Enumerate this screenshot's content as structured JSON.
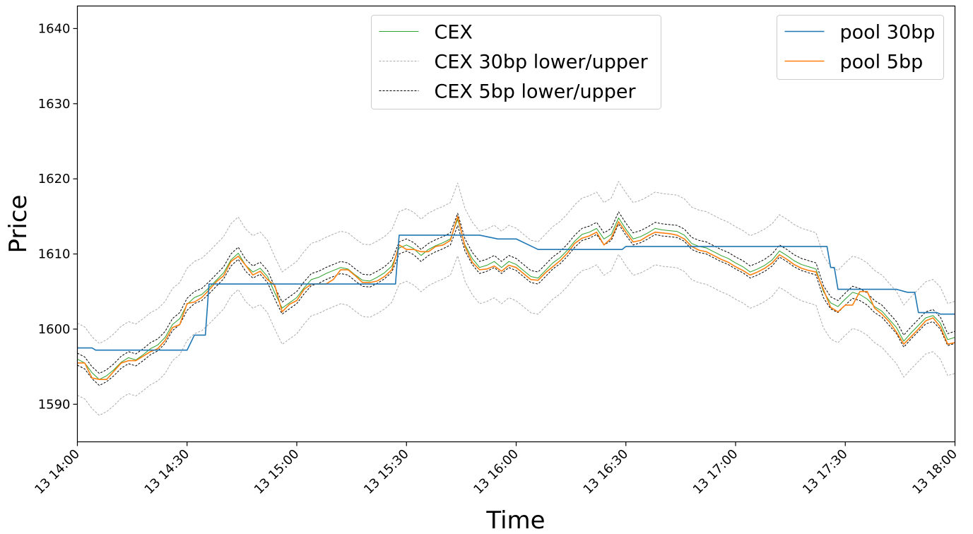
{
  "chart_data": {
    "type": "line",
    "xlabel": "Time",
    "ylabel": "Price",
    "x_ticks": [
      "13 14:00",
      "13 14:30",
      "13 15:00",
      "13 15:30",
      "13 16:00",
      "13 16:30",
      "13 17:00",
      "13 17:30",
      "13 18:00"
    ],
    "y_ticks": [
      "1590",
      "1600",
      "1610",
      "1620",
      "1630",
      "1640"
    ],
    "xlim_minutes": [
      0,
      240
    ],
    "ylim": [
      1585,
      1643
    ],
    "grid": false,
    "legends": [
      {
        "placement": "top-center",
        "entries": [
          {
            "label": "CEX",
            "series": "cex"
          },
          {
            "label": "CEX 30bp lower/upper",
            "series": "cex_30bp"
          },
          {
            "label": "CEX 5bp lower/upper",
            "series": "cex_5bp"
          }
        ]
      },
      {
        "placement": "top-right",
        "entries": [
          {
            "label": "pool 30bp",
            "series": "pool_30bp"
          },
          {
            "label": "pool 5bp",
            "series": "pool_5bp"
          }
        ]
      }
    ],
    "colors": {
      "cex": "#2ca02c",
      "cex_30bp": "#aaaaaa",
      "cex_5bp": "#000000",
      "pool_30bp": "#1f77b4",
      "pool_5bp": "#ff7f0e"
    },
    "series": [
      {
        "name": "CEX",
        "key": "cex",
        "x_minutes": [
          0,
          2,
          4,
          6,
          8,
          10,
          12,
          14,
          16,
          18,
          20,
          22,
          24,
          26,
          28,
          30,
          32,
          34,
          36,
          38,
          40,
          42,
          44,
          46,
          48,
          50,
          52,
          54,
          56,
          58,
          60,
          62,
          64,
          66,
          68,
          70,
          72,
          74,
          76,
          78,
          80,
          82,
          84,
          86,
          88,
          90,
          92,
          94,
          96,
          98,
          100,
          102,
          104,
          106,
          108,
          110,
          112,
          114,
          116,
          118,
          120,
          122,
          124,
          126,
          128,
          130,
          132,
          134,
          136,
          138,
          140,
          142,
          144,
          146,
          148,
          150,
          152,
          154,
          156,
          158,
          160,
          162,
          164,
          166,
          168,
          170,
          172,
          174,
          176,
          178,
          180,
          182,
          184,
          186,
          188,
          190,
          192,
          194,
          196,
          198,
          200,
          202,
          204,
          206,
          208,
          210,
          212,
          214,
          216,
          218,
          220,
          222,
          224,
          226,
          228,
          230,
          232,
          234,
          236,
          238,
          240
        ],
        "values": [
          1596.0,
          1595.5,
          1594.2,
          1593.3,
          1593.8,
          1594.6,
          1595.6,
          1596.2,
          1595.9,
          1596.6,
          1597.4,
          1597.9,
          1598.9,
          1600.6,
          1601.4,
          1603.3,
          1604.2,
          1604.6,
          1605.5,
          1606.5,
          1607.5,
          1609.2,
          1610.1,
          1608.5,
          1607.6,
          1608.1,
          1607.0,
          1604.8,
          1602.8,
          1603.5,
          1604.2,
          1605.5,
          1606.6,
          1606.9,
          1607.4,
          1607.8,
          1608.2,
          1608.0,
          1607.2,
          1606.5,
          1606.4,
          1606.9,
          1607.5,
          1608.4,
          1610.8,
          1611.2,
          1610.7,
          1609.8,
          1610.6,
          1611.1,
          1611.5,
          1612.0,
          1614.6,
          1611.2,
          1609.4,
          1608.2,
          1608.5,
          1609.0,
          1608.2,
          1609.0,
          1608.6,
          1607.8,
          1607.0,
          1606.8,
          1607.8,
          1608.8,
          1609.5,
          1610.5,
          1611.7,
          1612.6,
          1612.9,
          1613.4,
          1612.0,
          1612.6,
          1614.8,
          1613.3,
          1612.0,
          1612.3,
          1612.8,
          1613.4,
          1613.2,
          1613.1,
          1613.0,
          1612.5,
          1611.4,
          1611.0,
          1610.8,
          1610.3,
          1609.8,
          1609.4,
          1608.8,
          1608.3,
          1607.6,
          1608.0,
          1608.5,
          1609.2,
          1610.4,
          1609.8,
          1609.1,
          1608.6,
          1608.3,
          1608.0,
          1605.0,
          1603.5,
          1603.0,
          1604.0,
          1604.9,
          1604.6,
          1604.0,
          1603.0,
          1602.4,
          1601.3,
          1600.2,
          1598.4,
          1599.5,
          1600.5,
          1601.5,
          1601.8,
          1600.8,
          1598.6,
          1598.9
        ]
      },
      {
        "name": "pool 30bp",
        "key": "pool_30bp",
        "steps": [
          [
            0,
            1597.5
          ],
          [
            4,
            1597.5
          ],
          [
            5,
            1597.2
          ],
          [
            30,
            1597.2
          ],
          [
            32,
            1599.2
          ],
          [
            35,
            1599.2
          ],
          [
            36,
            1606.0
          ],
          [
            87,
            1606.0
          ],
          [
            88,
            1612.5
          ],
          [
            110,
            1612.5
          ],
          [
            115,
            1612.0
          ],
          [
            120,
            1612.0
          ],
          [
            126,
            1610.6
          ],
          [
            149,
            1610.6
          ],
          [
            150,
            1611.0
          ],
          [
            205,
            1611.0
          ],
          [
            206,
            1608.2
          ],
          [
            207,
            1608.2
          ],
          [
            208,
            1605.3
          ],
          [
            224,
            1605.3
          ],
          [
            227,
            1604.9
          ],
          [
            229,
            1604.9
          ],
          [
            230,
            1602.2
          ],
          [
            235,
            1602.2
          ],
          [
            236,
            1602.0
          ],
          [
            240,
            1602.0
          ]
        ]
      },
      {
        "name": "pool 5bp",
        "key": "pool_5bp",
        "x_minutes": [
          0,
          2,
          4,
          6,
          8,
          10,
          12,
          14,
          16,
          18,
          20,
          22,
          24,
          26,
          28,
          30,
          32,
          34,
          36,
          38,
          40,
          42,
          44,
          46,
          48,
          50,
          52,
          54,
          56,
          58,
          60,
          62,
          64,
          66,
          68,
          70,
          72,
          74,
          76,
          78,
          80,
          82,
          84,
          86,
          88,
          90,
          92,
          94,
          96,
          98,
          100,
          102,
          104,
          106,
          108,
          110,
          112,
          114,
          116,
          118,
          120,
          122,
          124,
          126,
          128,
          130,
          132,
          134,
          136,
          138,
          140,
          142,
          144,
          146,
          148,
          150,
          152,
          154,
          156,
          158,
          160,
          162,
          164,
          166,
          168,
          170,
          172,
          174,
          176,
          178,
          180,
          182,
          184,
          186,
          188,
          190,
          192,
          194,
          196,
          198,
          200,
          202,
          204,
          206,
          208,
          210,
          212,
          214,
          216,
          218,
          220,
          222,
          224,
          226,
          228,
          230,
          232,
          234,
          236,
          238,
          240
        ],
        "values": [
          1595.5,
          1595.5,
          1593.5,
          1593.3,
          1593.3,
          1594.4,
          1595.5,
          1595.8,
          1595.8,
          1596.4,
          1597.0,
          1597.4,
          1598.5,
          1600.2,
          1600.6,
          1603.4,
          1603.6,
          1604.2,
          1605.2,
          1606.3,
          1607.1,
          1609.0,
          1609.7,
          1608.5,
          1607.2,
          1607.7,
          1606.6,
          1605.8,
          1602.3,
          1603.3,
          1603.8,
          1605.3,
          1606.0,
          1606.0,
          1606.0,
          1606.6,
          1607.9,
          1607.9,
          1607.1,
          1606.2,
          1606.2,
          1606.4,
          1607.0,
          1607.9,
          1611.2,
          1610.6,
          1610.6,
          1610.3,
          1610.3,
          1611.0,
          1611.2,
          1611.8,
          1615.0,
          1611.0,
          1608.9,
          1607.9,
          1608.0,
          1608.4,
          1607.7,
          1608.5,
          1608.2,
          1607.4,
          1606.6,
          1606.5,
          1607.5,
          1608.3,
          1609.1,
          1610.1,
          1611.4,
          1612.1,
          1612.4,
          1612.9,
          1611.2,
          1612.1,
          1614.3,
          1612.9,
          1611.6,
          1611.8,
          1612.4,
          1612.9,
          1612.8,
          1612.7,
          1612.5,
          1612.0,
          1611.0,
          1610.5,
          1610.3,
          1609.8,
          1609.3,
          1608.9,
          1608.3,
          1607.8,
          1607.2,
          1607.6,
          1608.1,
          1608.8,
          1609.9,
          1609.3,
          1608.6,
          1608.1,
          1607.8,
          1607.6,
          1605.3,
          1602.9,
          1602.3,
          1603.2,
          1603.2,
          1605.0,
          1605.0,
          1602.8,
          1602.0,
          1601.0,
          1599.6,
          1598.0,
          1599.0,
          1600.0,
          1601.1,
          1601.5,
          1600.3,
          1598.0,
          1598.2
        ]
      }
    ]
  }
}
